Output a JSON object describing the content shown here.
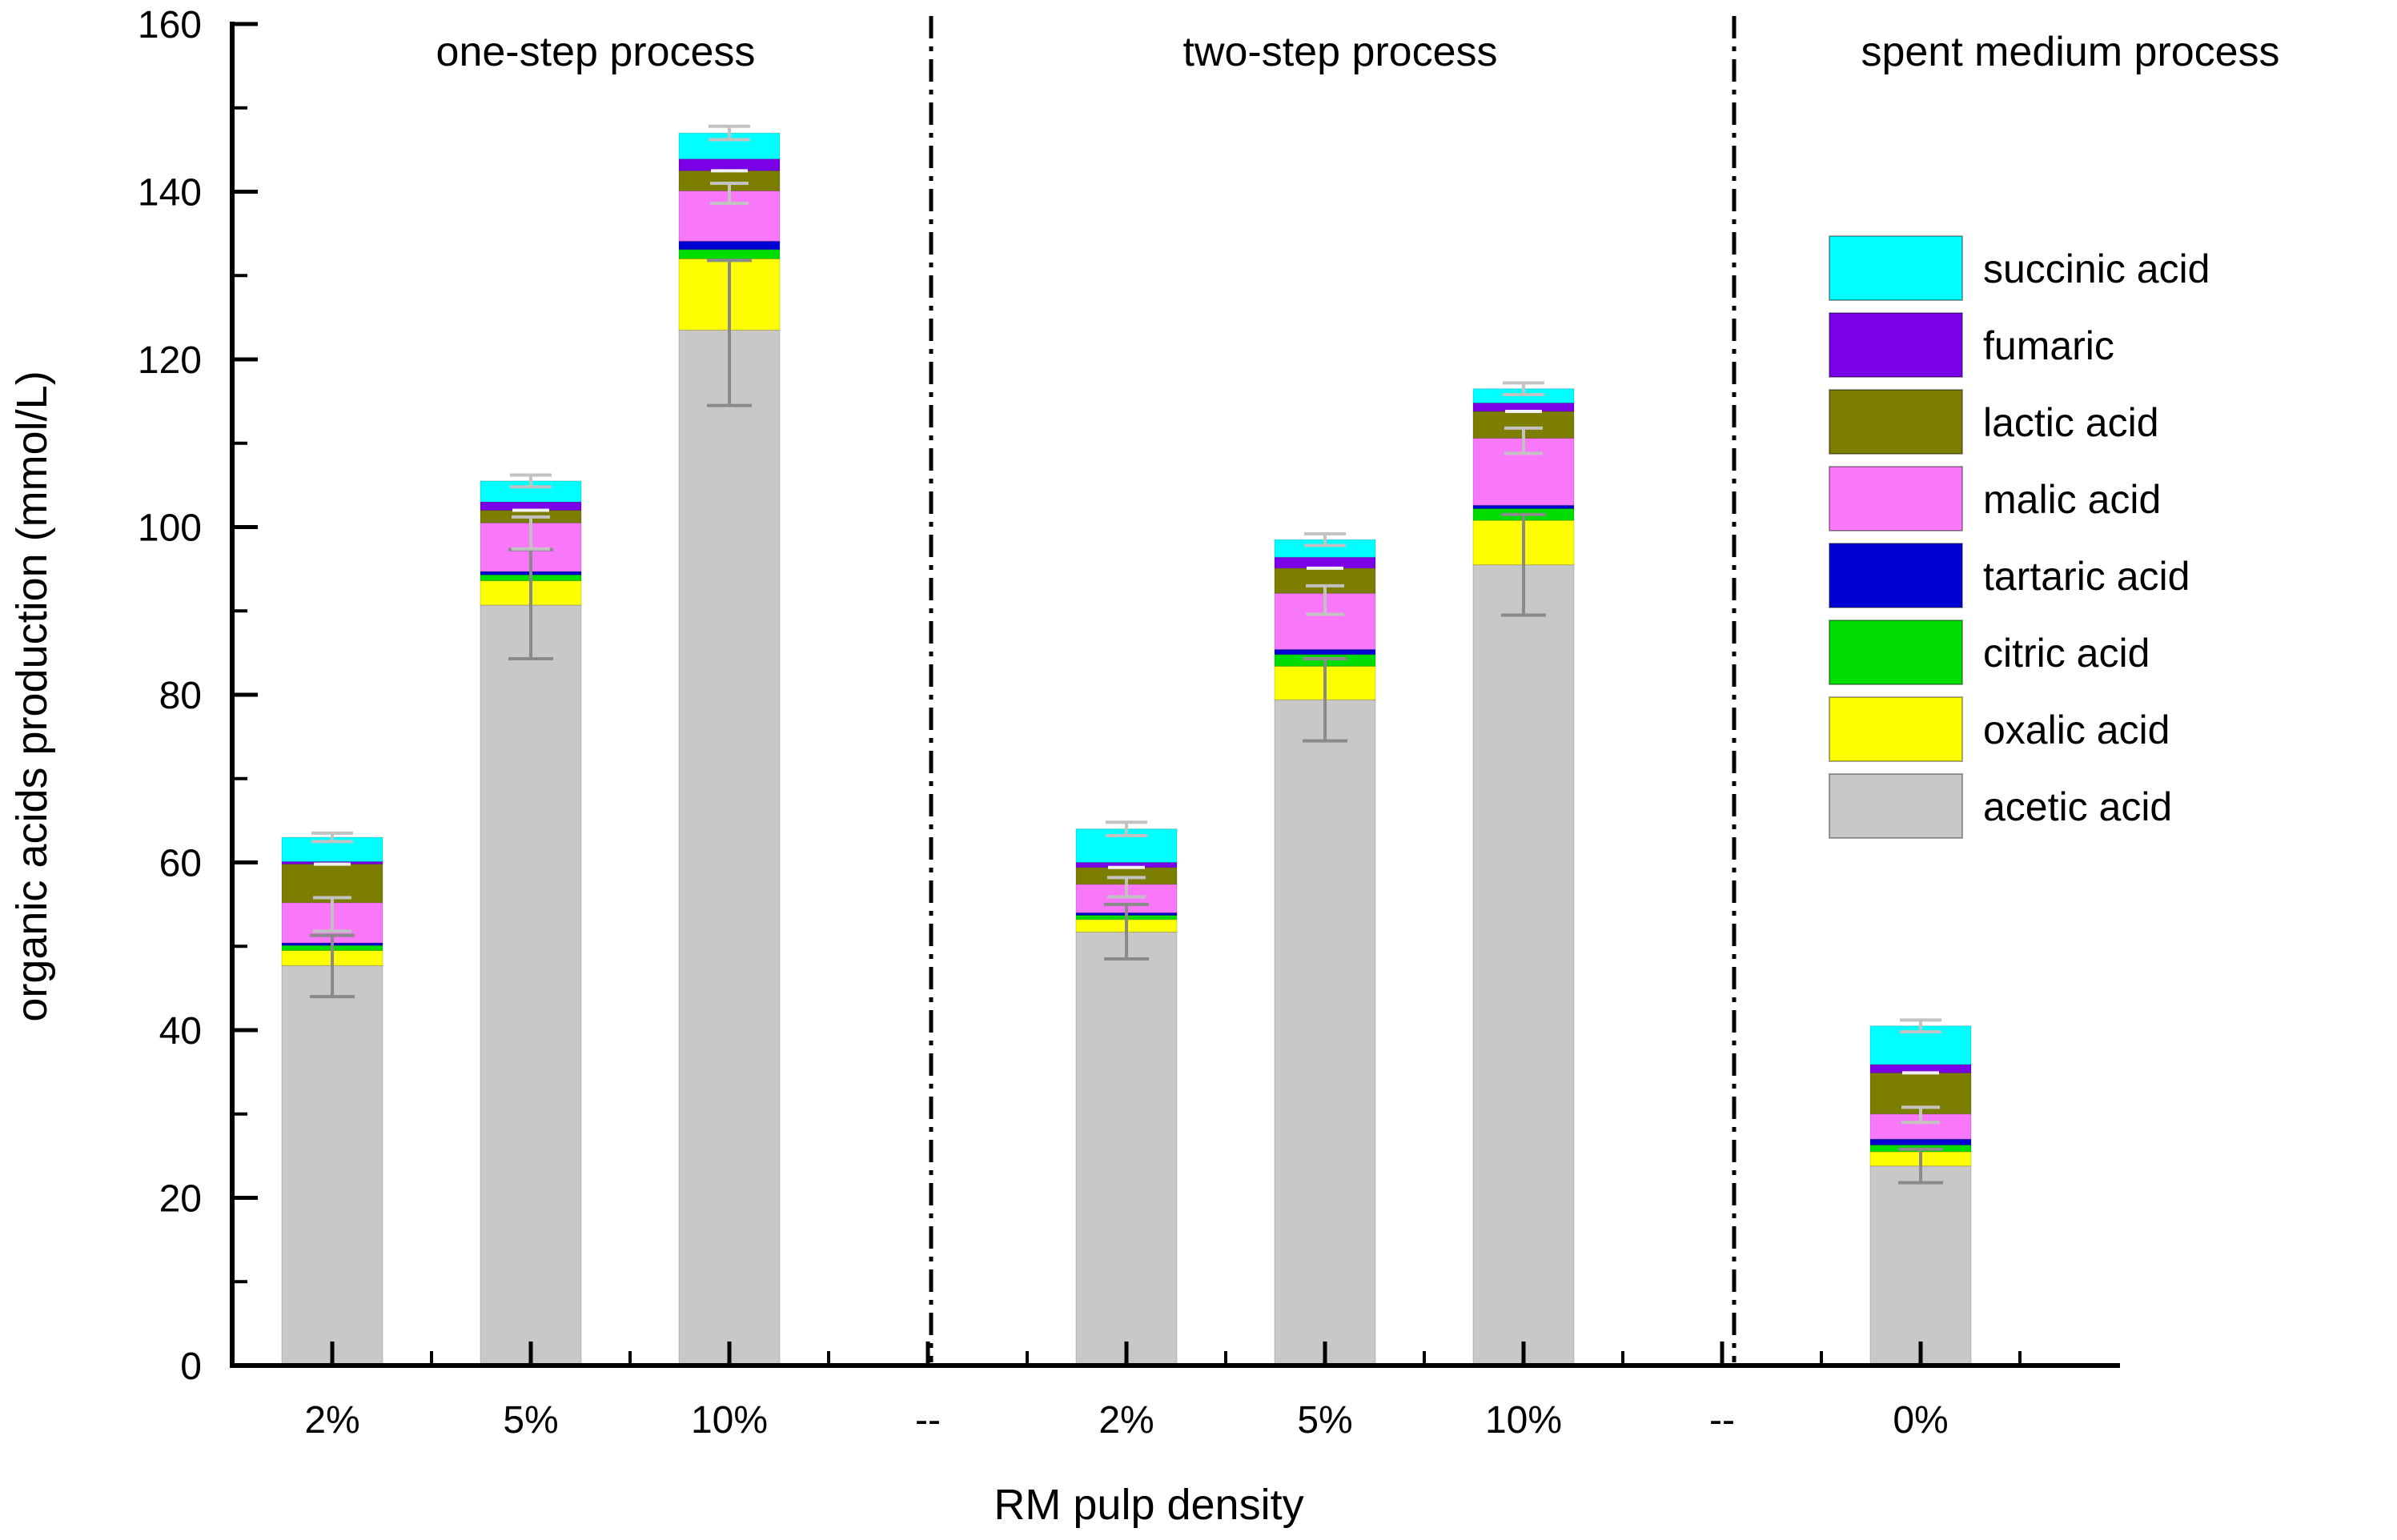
{
  "chart_data": {
    "type": "bar",
    "subtype": "stacked-vertical",
    "title": "",
    "xlabel": "RM pulp density",
    "ylabel": "organic acids production (mmol/L)",
    "ylim": [
      0,
      160
    ],
    "ytick_step": 20,
    "ytick_minor_step": 10,
    "ytick_labels": [
      "0",
      "20",
      "40",
      "60",
      "80",
      "100",
      "120",
      "140",
      "160"
    ],
    "grid": "off",
    "legend_position": "right-inside",
    "x_categories": [
      "2%",
      "5%",
      "10%",
      "--",
      "2%",
      "5%",
      "10%",
      "--",
      "0%"
    ],
    "bar_category_indices": [
      0,
      1,
      2,
      4,
      5,
      6,
      8
    ],
    "sections": [
      {
        "label": "one-step process",
        "categories": [
          "2%",
          "5%",
          "10%"
        ]
      },
      {
        "label": "two-step process",
        "categories": [
          "2%",
          "5%",
          "10%"
        ]
      },
      {
        "label": "spent medium process",
        "categories": [
          "0%"
        ]
      }
    ],
    "separator_label": "--",
    "series": [
      {
        "name": "acetic acid",
        "color": "#c8c8c8",
        "values": [
          47.7,
          90.7,
          123.5,
          51.7,
          79.4,
          95.5,
          23.8
        ]
      },
      {
        "name": "oxalic acid",
        "color": "#ffff00",
        "values": [
          1.8,
          2.9,
          8.5,
          1.5,
          4.0,
          5.3,
          1.7
        ]
      },
      {
        "name": "citric acid",
        "color": "#00dd00",
        "values": [
          0.6,
          0.7,
          1.1,
          0.5,
          1.4,
          1.4,
          0.8
        ]
      },
      {
        "name": "tartaric acid",
        "color": "#0000d2",
        "values": [
          0.3,
          0.4,
          1.0,
          0.3,
          0.6,
          0.4,
          0.7
        ]
      },
      {
        "name": "malic acid",
        "color": "#f978f9",
        "values": [
          4.8,
          5.8,
          6.0,
          3.4,
          6.7,
          8.0,
          3.0
        ]
      },
      {
        "name": "lactic acid",
        "color": "#7d7d00",
        "values": [
          4.6,
          1.5,
          2.4,
          2.0,
          3.0,
          3.2,
          4.9
        ]
      },
      {
        "name": "fumaric",
        "color": "#7a00e8",
        "values": [
          0.3,
          1.0,
          1.4,
          0.6,
          1.3,
          1.0,
          1.0
        ]
      },
      {
        "name": "succinic acid",
        "color": "#00ffff",
        "values": [
          2.9,
          2.5,
          3.1,
          4.0,
          2.1,
          1.7,
          4.6
        ]
      }
    ],
    "bar_totals": [
      63.0,
      105.5,
      147.0,
      64.0,
      98.5,
      116.5,
      40.5
    ],
    "error_bars": {
      "acetic_top": [
        [
          44.0,
          51.3
        ],
        [
          84.3,
          97.3
        ],
        [
          114.5,
          131.8
        ],
        [
          48.5,
          55.0
        ],
        [
          74.5,
          84.3
        ],
        [
          89.5,
          101.5
        ],
        [
          21.8,
          25.8
        ]
      ],
      "malic_top": [
        [
          51.8,
          55.8
        ],
        [
          97.4,
          101.2
        ],
        [
          138.6,
          141.0
        ],
        [
          55.9,
          58.2
        ],
        [
          89.6,
          93.0
        ],
        [
          108.8,
          111.8
        ],
        [
          29.0,
          30.8
        ]
      ],
      "total_top": [
        [
          62.5,
          63.5
        ],
        [
          104.8,
          106.2
        ],
        [
          146.2,
          147.8
        ],
        [
          63.2,
          64.8
        ],
        [
          97.8,
          99.2
        ],
        [
          115.8,
          117.2
        ],
        [
          39.8,
          41.2
        ]
      ]
    },
    "legend": {
      "entries": [
        {
          "label": "succinic acid",
          "color": "#00ffff"
        },
        {
          "label": "fumaric",
          "color": "#7a00e8"
        },
        {
          "label": "lactic acid",
          "color": "#7d7d00"
        },
        {
          "label": "malic acid",
          "color": "#f978f9"
        },
        {
          "label": "tartaric acid",
          "color": "#0000d2"
        },
        {
          "label": "citric acid",
          "color": "#00dd00"
        },
        {
          "label": "oxalic acid",
          "color": "#ffff00"
        },
        {
          "label": "acetic acid",
          "color": "#c8c8c8"
        }
      ]
    },
    "colors": {
      "axis": "#000000",
      "divider": "#000000",
      "error_bar_dark": "#8a8a8a",
      "error_bar_light": "#c2c2c2",
      "boundary_cap": "#f0f0f0"
    }
  }
}
